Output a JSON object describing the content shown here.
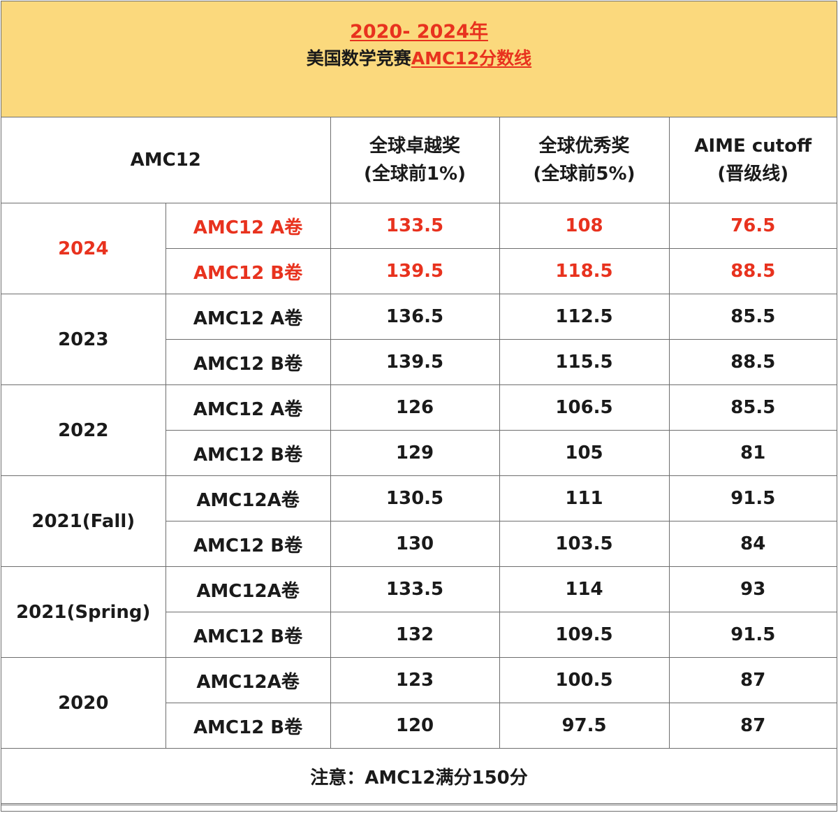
{
  "header": {
    "title_line1": "2020- 2024年",
    "title_line2_prefix": "美国数学竞赛",
    "title_line2_accent": "AMC12分数线"
  },
  "columns": {
    "label": "AMC12",
    "distinction_line1": "全球卓越奖",
    "distinction_line2": "(全球前1%)",
    "merit_line1": "全球优秀奖",
    "merit_line2": "(全球前5%)",
    "aime_line1": "AIME cutoff",
    "aime_line2": "(晋级线)"
  },
  "years": [
    {
      "year": "2024",
      "highlight": true,
      "rows": [
        {
          "paper": "AMC12 A卷",
          "distinction": "133.5",
          "merit": "108",
          "aime": "76.5"
        },
        {
          "paper": "AMC12 B卷",
          "distinction": "139.5",
          "merit": "118.5",
          "aime": "88.5"
        }
      ]
    },
    {
      "year": "2023",
      "highlight": false,
      "rows": [
        {
          "paper": "AMC12 A卷",
          "distinction": "136.5",
          "merit": "112.5",
          "aime": "85.5"
        },
        {
          "paper": "AMC12 B卷",
          "distinction": "139.5",
          "merit": "115.5",
          "aime": "88.5"
        }
      ]
    },
    {
      "year": "2022",
      "highlight": false,
      "rows": [
        {
          "paper": "AMC12 A卷",
          "distinction": "126",
          "merit": "106.5",
          "aime": "85.5"
        },
        {
          "paper": "AMC12 B卷",
          "distinction": "129",
          "merit": "105",
          "aime": "81"
        }
      ]
    },
    {
      "year": "2021(Fall)",
      "highlight": false,
      "rows": [
        {
          "paper": "AMC12A卷",
          "distinction": "130.5",
          "merit": "111",
          "aime": "91.5"
        },
        {
          "paper": "AMC12 B卷",
          "distinction": "130",
          "merit": "103.5",
          "aime": "84"
        }
      ]
    },
    {
      "year": "2021(Spring)",
      "highlight": false,
      "rows": [
        {
          "paper": "AMC12A卷",
          "distinction": "133.5",
          "merit": "114",
          "aime": "93"
        },
        {
          "paper": "AMC12 B卷",
          "distinction": "132",
          "merit": "109.5",
          "aime": "91.5"
        }
      ]
    },
    {
      "year": "2020",
      "highlight": false,
      "rows": [
        {
          "paper": "AMC12A卷",
          "distinction": "123",
          "merit": "100.5",
          "aime": "87"
        },
        {
          "paper": "AMC12 B卷",
          "distinction": "120",
          "merit": "97.5",
          "aime": "87"
        }
      ]
    }
  ],
  "note": "注意：AMC12满分150分",
  "colors": {
    "banner_bg": "#fbd97d",
    "accent_red": "#e8321e",
    "text": "#1a1a1a",
    "border": "#6e6e6e"
  }
}
